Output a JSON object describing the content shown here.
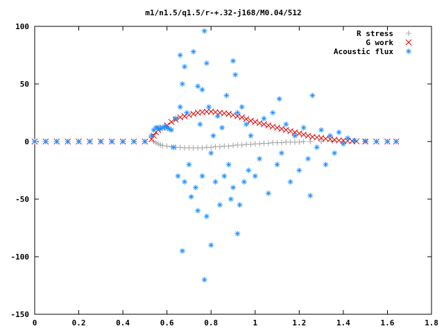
{
  "chart_data": {
    "type": "scatter",
    "title": "m1/n1.5/q1.5/r-+.32-j168/M0.04/512",
    "xlabel": "",
    "ylabel": "",
    "xlim": [
      0,
      1.8
    ],
    "ylim": [
      -150,
      100
    ],
    "x_ticks": [
      "0",
      "0.2",
      "0.4",
      "0.6",
      "0.8",
      "1",
      "1.2",
      "1.4",
      "1.6",
      "1.8"
    ],
    "y_ticks": [
      "100",
      "50",
      "0",
      "-50",
      "-100",
      "-150"
    ],
    "legend_position": "top-right",
    "grid": false,
    "series": [
      {
        "name": "R stress",
        "marker": "+",
        "color": "#a0a0a0",
        "points": [
          [
            0.0,
            0
          ],
          [
            0.05,
            0
          ],
          [
            0.1,
            0
          ],
          [
            0.15,
            0
          ],
          [
            0.2,
            0
          ],
          [
            0.25,
            0
          ],
          [
            0.3,
            0
          ],
          [
            0.35,
            0
          ],
          [
            0.4,
            0
          ],
          [
            0.45,
            0
          ],
          [
            0.5,
            0
          ],
          [
            0.54,
            0
          ],
          [
            0.55,
            -1
          ],
          [
            0.56,
            -2
          ],
          [
            0.57,
            -3
          ],
          [
            0.58,
            -3.5
          ],
          [
            0.6,
            -4
          ],
          [
            0.62,
            -4.5
          ],
          [
            0.64,
            -5
          ],
          [
            0.66,
            -5
          ],
          [
            0.68,
            -5.5
          ],
          [
            0.7,
            -5.5
          ],
          [
            0.72,
            -5.5
          ],
          [
            0.74,
            -5.5
          ],
          [
            0.76,
            -5.5
          ],
          [
            0.78,
            -5
          ],
          [
            0.8,
            -5
          ],
          [
            0.82,
            -4.5
          ],
          [
            0.84,
            -4.5
          ],
          [
            0.86,
            -4
          ],
          [
            0.88,
            -4
          ],
          [
            0.9,
            -3.5
          ],
          [
            0.92,
            -3
          ],
          [
            0.94,
            -3
          ],
          [
            0.96,
            -2.5
          ],
          [
            0.98,
            -2.5
          ],
          [
            1.0,
            -2
          ],
          [
            1.02,
            -2
          ],
          [
            1.04,
            -1.5
          ],
          [
            1.06,
            -1.5
          ],
          [
            1.08,
            -1
          ],
          [
            1.1,
            -1
          ],
          [
            1.12,
            -1
          ],
          [
            1.14,
            -0.5
          ],
          [
            1.16,
            -0.5
          ],
          [
            1.18,
            -0.5
          ],
          [
            1.2,
            -0.5
          ],
          [
            1.22,
            0
          ],
          [
            1.25,
            0
          ],
          [
            1.3,
            0
          ],
          [
            1.35,
            0
          ],
          [
            1.4,
            0
          ],
          [
            1.45,
            0
          ],
          [
            1.5,
            0
          ],
          [
            1.55,
            0
          ],
          [
            1.6,
            0
          ],
          [
            1.64,
            0
          ]
        ]
      },
      {
        "name": "G work",
        "marker": "x",
        "color": "#e00000",
        "points": [
          [
            0.0,
            0
          ],
          [
            0.05,
            0
          ],
          [
            0.1,
            0
          ],
          [
            0.15,
            0
          ],
          [
            0.2,
            0
          ],
          [
            0.25,
            0
          ],
          [
            0.3,
            0
          ],
          [
            0.35,
            0
          ],
          [
            0.4,
            0
          ],
          [
            0.45,
            0
          ],
          [
            0.5,
            0
          ],
          [
            0.53,
            2
          ],
          [
            0.54,
            5
          ],
          [
            0.55,
            8
          ],
          [
            0.56,
            10
          ],
          [
            0.58,
            12
          ],
          [
            0.6,
            14
          ],
          [
            0.62,
            17
          ],
          [
            0.64,
            19
          ],
          [
            0.66,
            21
          ],
          [
            0.68,
            22
          ],
          [
            0.7,
            23
          ],
          [
            0.72,
            24
          ],
          [
            0.74,
            25
          ],
          [
            0.76,
            25.5
          ],
          [
            0.78,
            26
          ],
          [
            0.8,
            26
          ],
          [
            0.82,
            25.5
          ],
          [
            0.84,
            25
          ],
          [
            0.86,
            24.5
          ],
          [
            0.88,
            24
          ],
          [
            0.9,
            23
          ],
          [
            0.92,
            22
          ],
          [
            0.94,
            21
          ],
          [
            0.96,
            19.5
          ],
          [
            0.98,
            18
          ],
          [
            1.0,
            17
          ],
          [
            1.02,
            16
          ],
          [
            1.04,
            15
          ],
          [
            1.06,
            14
          ],
          [
            1.08,
            13
          ],
          [
            1.1,
            12
          ],
          [
            1.12,
            11
          ],
          [
            1.14,
            10
          ],
          [
            1.16,
            9
          ],
          [
            1.18,
            8
          ],
          [
            1.2,
            7
          ],
          [
            1.22,
            6
          ],
          [
            1.24,
            5
          ],
          [
            1.26,
            4
          ],
          [
            1.28,
            3.5
          ],
          [
            1.3,
            3
          ],
          [
            1.32,
            2.5
          ],
          [
            1.34,
            2
          ],
          [
            1.36,
            1.5
          ],
          [
            1.38,
            1
          ],
          [
            1.4,
            0.8
          ],
          [
            1.42,
            0.5
          ],
          [
            1.44,
            0.3
          ],
          [
            1.46,
            0.2
          ],
          [
            1.5,
            0
          ],
          [
            1.55,
            0
          ],
          [
            1.6,
            0
          ],
          [
            1.64,
            0
          ]
        ]
      },
      {
        "name": "Acoustic flux",
        "marker": "*",
        "color": "#1e90ff",
        "points": [
          [
            0.0,
            0
          ],
          [
            0.05,
            0
          ],
          [
            0.1,
            0
          ],
          [
            0.15,
            0
          ],
          [
            0.2,
            0
          ],
          [
            0.25,
            0
          ],
          [
            0.3,
            0
          ],
          [
            0.35,
            0
          ],
          [
            0.4,
            0
          ],
          [
            0.45,
            0
          ],
          [
            0.5,
            0
          ],
          [
            0.53,
            5
          ],
          [
            0.54,
            10
          ],
          [
            0.55,
            12
          ],
          [
            0.56,
            12
          ],
          [
            0.57,
            11
          ],
          [
            0.58,
            12
          ],
          [
            0.59,
            13
          ],
          [
            0.6,
            12
          ],
          [
            0.61,
            11
          ],
          [
            0.62,
            10
          ],
          [
            0.63,
            -5
          ],
          [
            0.64,
            20
          ],
          [
            0.65,
            -30
          ],
          [
            0.66,
            30
          ],
          [
            0.66,
            75
          ],
          [
            0.67,
            -95
          ],
          [
            0.67,
            50
          ],
          [
            0.68,
            -35
          ],
          [
            0.68,
            65
          ],
          [
            0.69,
            25
          ],
          [
            0.7,
            -20
          ],
          [
            0.71,
            -48
          ],
          [
            0.72,
            78
          ],
          [
            0.73,
            -40
          ],
          [
            0.74,
            48
          ],
          [
            0.74,
            -60
          ],
          [
            0.75,
            15
          ],
          [
            0.76,
            -30
          ],
          [
            0.76,
            45
          ],
          [
            0.77,
            96
          ],
          [
            0.77,
            -120
          ],
          [
            0.78,
            68
          ],
          [
            0.78,
            -65
          ],
          [
            0.79,
            30
          ],
          [
            0.8,
            -10
          ],
          [
            0.8,
            -90
          ],
          [
            0.81,
            5
          ],
          [
            0.82,
            -35
          ],
          [
            0.83,
            22
          ],
          [
            0.84,
            -55
          ],
          [
            0.85,
            12
          ],
          [
            0.86,
            -30
          ],
          [
            0.87,
            40
          ],
          [
            0.88,
            -20
          ],
          [
            0.89,
            -50
          ],
          [
            0.9,
            70
          ],
          [
            0.9,
            -40
          ],
          [
            0.91,
            58
          ],
          [
            0.92,
            25
          ],
          [
            0.92,
            -80
          ],
          [
            0.93,
            -55
          ],
          [
            0.94,
            30
          ],
          [
            0.95,
            -35
          ],
          [
            0.96,
            15
          ],
          [
            0.97,
            -25
          ],
          [
            0.98,
            5
          ],
          [
            1.0,
            -30
          ],
          [
            1.02,
            -15
          ],
          [
            1.04,
            20
          ],
          [
            1.06,
            -45
          ],
          [
            1.08,
            25
          ],
          [
            1.1,
            -20
          ],
          [
            1.11,
            37
          ],
          [
            1.12,
            -10
          ],
          [
            1.14,
            15
          ],
          [
            1.16,
            -35
          ],
          [
            1.18,
            5
          ],
          [
            1.2,
            -25
          ],
          [
            1.22,
            12
          ],
          [
            1.24,
            -15
          ],
          [
            1.25,
            -47
          ],
          [
            1.26,
            40
          ],
          [
            1.28,
            -5
          ],
          [
            1.3,
            10
          ],
          [
            1.32,
            -20
          ],
          [
            1.34,
            5
          ],
          [
            1.36,
            -10
          ],
          [
            1.38,
            8
          ],
          [
            1.4,
            -2
          ],
          [
            1.42,
            3
          ],
          [
            1.45,
            1
          ],
          [
            1.5,
            0.5
          ],
          [
            1.55,
            0
          ],
          [
            1.6,
            0
          ],
          [
            1.64,
            0
          ]
        ]
      }
    ]
  }
}
